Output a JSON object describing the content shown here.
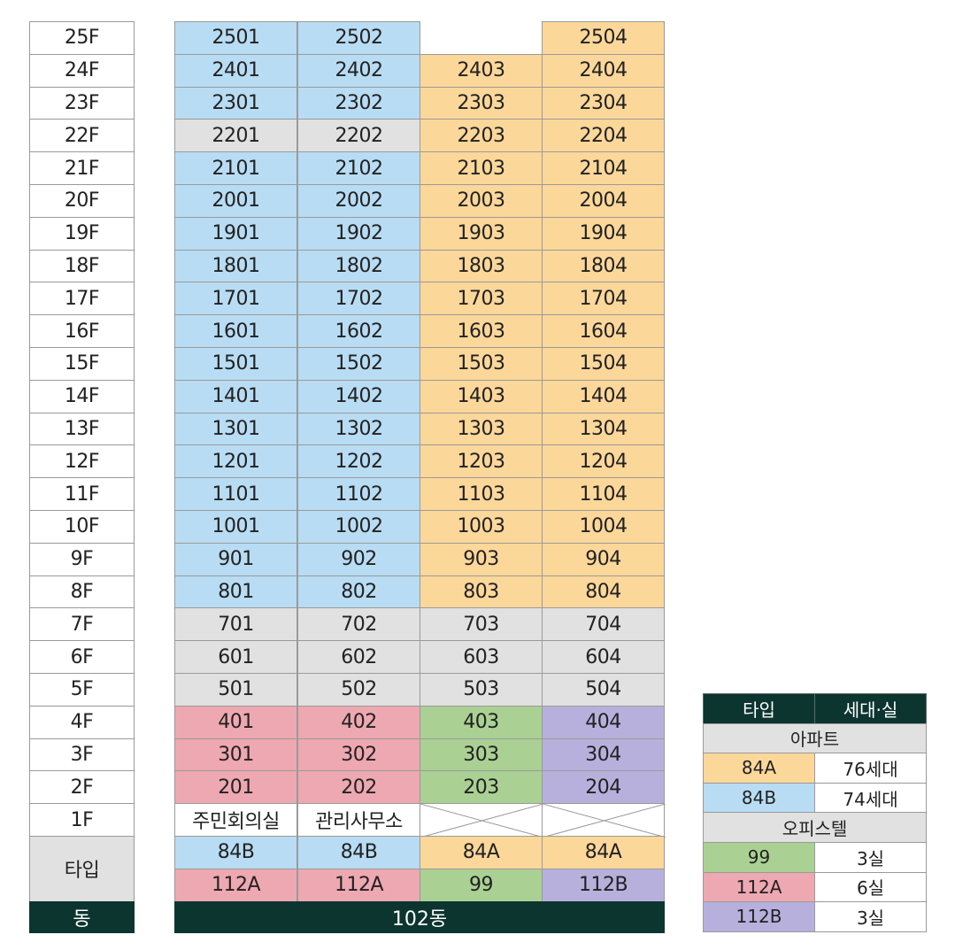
{
  "floors": [
    "25F",
    "24F",
    "23F",
    "22F",
    "21F",
    "20F",
    "19F",
    "18F",
    "17F",
    "16F",
    "15F",
    "14F",
    "13F",
    "12F",
    "11F",
    "10F",
    "9F",
    "8F",
    "7F",
    "6F",
    "5F",
    "4F",
    "3F",
    "2F",
    "1F"
  ],
  "rows": [
    [
      {
        "t": "2501",
        "c": "84B"
      },
      {
        "t": "2502",
        "c": "84B"
      },
      {
        "t": "",
        "c": "none"
      },
      {
        "t": "2504",
        "c": "84A"
      }
    ],
    [
      {
        "t": "2401",
        "c": "84B"
      },
      {
        "t": "2402",
        "c": "84B"
      },
      {
        "t": "2403",
        "c": "84A"
      },
      {
        "t": "2404",
        "c": "84A"
      }
    ],
    [
      {
        "t": "2301",
        "c": "84B"
      },
      {
        "t": "2302",
        "c": "84B"
      },
      {
        "t": "2303",
        "c": "84A"
      },
      {
        "t": "2304",
        "c": "84A"
      }
    ],
    [
      {
        "t": "2201",
        "c": "gray"
      },
      {
        "t": "2202",
        "c": "gray"
      },
      {
        "t": "2203",
        "c": "84A"
      },
      {
        "t": "2204",
        "c": "84A"
      }
    ],
    [
      {
        "t": "2101",
        "c": "84B"
      },
      {
        "t": "2102",
        "c": "84B"
      },
      {
        "t": "2103",
        "c": "84A"
      },
      {
        "t": "2104",
        "c": "84A"
      }
    ],
    [
      {
        "t": "2001",
        "c": "84B"
      },
      {
        "t": "2002",
        "c": "84B"
      },
      {
        "t": "2003",
        "c": "84A"
      },
      {
        "t": "2004",
        "c": "84A"
      }
    ],
    [
      {
        "t": "1901",
        "c": "84B"
      },
      {
        "t": "1902",
        "c": "84B"
      },
      {
        "t": "1903",
        "c": "84A"
      },
      {
        "t": "1904",
        "c": "84A"
      }
    ],
    [
      {
        "t": "1801",
        "c": "84B"
      },
      {
        "t": "1802",
        "c": "84B"
      },
      {
        "t": "1803",
        "c": "84A"
      },
      {
        "t": "1804",
        "c": "84A"
      }
    ],
    [
      {
        "t": "1701",
        "c": "84B"
      },
      {
        "t": "1702",
        "c": "84B"
      },
      {
        "t": "1703",
        "c": "84A"
      },
      {
        "t": "1704",
        "c": "84A"
      }
    ],
    [
      {
        "t": "1601",
        "c": "84B"
      },
      {
        "t": "1602",
        "c": "84B"
      },
      {
        "t": "1603",
        "c": "84A"
      },
      {
        "t": "1604",
        "c": "84A"
      }
    ],
    [
      {
        "t": "1501",
        "c": "84B"
      },
      {
        "t": "1502",
        "c": "84B"
      },
      {
        "t": "1503",
        "c": "84A"
      },
      {
        "t": "1504",
        "c": "84A"
      }
    ],
    [
      {
        "t": "1401",
        "c": "84B"
      },
      {
        "t": "1402",
        "c": "84B"
      },
      {
        "t": "1403",
        "c": "84A"
      },
      {
        "t": "1404",
        "c": "84A"
      }
    ],
    [
      {
        "t": "1301",
        "c": "84B"
      },
      {
        "t": "1302",
        "c": "84B"
      },
      {
        "t": "1303",
        "c": "84A"
      },
      {
        "t": "1304",
        "c": "84A"
      }
    ],
    [
      {
        "t": "1201",
        "c": "84B"
      },
      {
        "t": "1202",
        "c": "84B"
      },
      {
        "t": "1203",
        "c": "84A"
      },
      {
        "t": "1204",
        "c": "84A"
      }
    ],
    [
      {
        "t": "1101",
        "c": "84B"
      },
      {
        "t": "1102",
        "c": "84B"
      },
      {
        "t": "1103",
        "c": "84A"
      },
      {
        "t": "1104",
        "c": "84A"
      }
    ],
    [
      {
        "t": "1001",
        "c": "84B"
      },
      {
        "t": "1002",
        "c": "84B"
      },
      {
        "t": "1003",
        "c": "84A"
      },
      {
        "t": "1004",
        "c": "84A"
      }
    ],
    [
      {
        "t": "901",
        "c": "84B"
      },
      {
        "t": "902",
        "c": "84B"
      },
      {
        "t": "903",
        "c": "84A"
      },
      {
        "t": "904",
        "c": "84A"
      }
    ],
    [
      {
        "t": "801",
        "c": "84B"
      },
      {
        "t": "802",
        "c": "84B"
      },
      {
        "t": "803",
        "c": "84A"
      },
      {
        "t": "804",
        "c": "84A"
      }
    ],
    [
      {
        "t": "701",
        "c": "gray"
      },
      {
        "t": "702",
        "c": "gray"
      },
      {
        "t": "703",
        "c": "gray"
      },
      {
        "t": "704",
        "c": "gray"
      }
    ],
    [
      {
        "t": "601",
        "c": "gray"
      },
      {
        "t": "602",
        "c": "gray"
      },
      {
        "t": "603",
        "c": "gray"
      },
      {
        "t": "604",
        "c": "gray"
      }
    ],
    [
      {
        "t": "501",
        "c": "gray"
      },
      {
        "t": "502",
        "c": "gray"
      },
      {
        "t": "503",
        "c": "gray"
      },
      {
        "t": "504",
        "c": "gray"
      }
    ],
    [
      {
        "t": "401",
        "c": "112A"
      },
      {
        "t": "402",
        "c": "112A"
      },
      {
        "t": "403",
        "c": "99"
      },
      {
        "t": "404",
        "c": "112B"
      }
    ],
    [
      {
        "t": "301",
        "c": "112A"
      },
      {
        "t": "302",
        "c": "112A"
      },
      {
        "t": "303",
        "c": "99"
      },
      {
        "t": "304",
        "c": "112B"
      }
    ],
    [
      {
        "t": "201",
        "c": "112A"
      },
      {
        "t": "202",
        "c": "112A"
      },
      {
        "t": "203",
        "c": "99"
      },
      {
        "t": "204",
        "c": "112B"
      }
    ],
    [
      {
        "t": "주민회의실",
        "c": "white"
      },
      {
        "t": "관리사무소",
        "c": "white"
      },
      {
        "t": "",
        "c": "x"
      },
      {
        "t": "",
        "c": "x"
      }
    ]
  ],
  "type_label": "타입",
  "type_rows": [
    [
      {
        "t": "84B",
        "c": "84B"
      },
      {
        "t": "84B",
        "c": "84B"
      },
      {
        "t": "84A",
        "c": "84A"
      },
      {
        "t": "84A",
        "c": "84A"
      }
    ],
    [
      {
        "t": "112A",
        "c": "112A"
      },
      {
        "t": "112A",
        "c": "112A"
      },
      {
        "t": "99",
        "c": "99"
      },
      {
        "t": "112B",
        "c": "112B"
      }
    ]
  ],
  "dong_label": "동",
  "building_label": "102동",
  "legend": {
    "header": [
      "타입",
      "세대·실"
    ],
    "sections": [
      {
        "title": "아파트",
        "rows": [
          {
            "type": "84A",
            "count": "76세대",
            "c": "84A"
          },
          {
            "type": "84B",
            "count": "74세대",
            "c": "84B"
          }
        ]
      },
      {
        "title": "오피스텔",
        "rows": [
          {
            "type": "99",
            "count": "3실",
            "c": "99"
          },
          {
            "type": "112A",
            "count": "6실",
            "c": "112A"
          },
          {
            "type": "112B",
            "count": "3실",
            "c": "112B"
          }
        ]
      }
    ]
  },
  "colors": {
    "84A": "#fcd79a",
    "84B": "#b8dcf3",
    "gray": "#e1e1e1",
    "112A": "#eea8b1",
    "99": "#aad193",
    "112B": "#b8b0dc",
    "dark": "#0c3530"
  }
}
